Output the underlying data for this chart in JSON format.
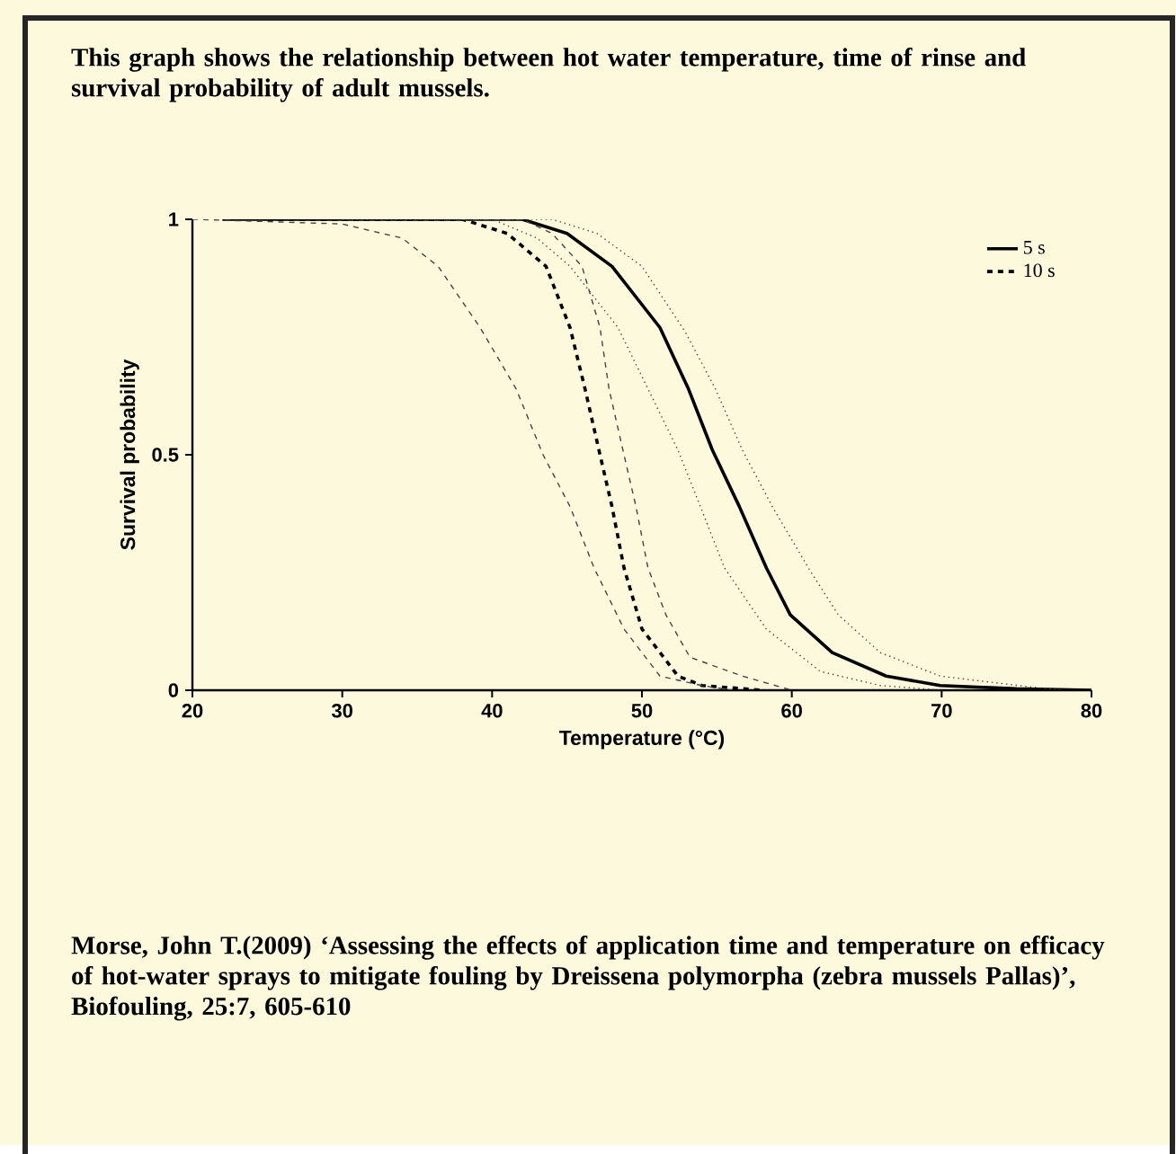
{
  "chart_data": {
    "type": "line",
    "title": "This graph shows the relationship between hot water temperature, time of rinse and survival probability of adult mussels.",
    "xlabel": "Temperature (°C)",
    "ylabel": "Survival probability",
    "xlim": [
      20,
      80
    ],
    "ylim": [
      0,
      1
    ],
    "xticks": [
      20,
      30,
      40,
      50,
      60,
      70,
      80
    ],
    "yticks": [
      0,
      0.5,
      1
    ],
    "legend": "top right",
    "annotations": [
      "Morse, John T.(2009) ‘Assessing the effects of application time and temperature on efficacy of hot-water sprays to mitigate fouling by Dreissena polymorpha (zebra mussels Pallas)’, Biofouling, 25:7, 605-610"
    ],
    "series": [
      {
        "name": "5 s",
        "color": "#000000",
        "line_style": "solid",
        "x": [
          22,
          42,
          45,
          48,
          51.2,
          53.1,
          54.7,
          56.5,
          58.3,
          59.9,
          62.7,
          66.3,
          69.9,
          75,
          80
        ],
        "values": [
          1,
          1,
          0.97,
          0.9,
          0.77,
          0.64,
          0.51,
          0.39,
          0.26,
          0.16,
          0.08,
          0.03,
          0.01,
          0.003,
          0
        ]
      },
      {
        "name": "10 s",
        "color": "#000000",
        "line_style": "dashed",
        "x": [
          25,
          38,
          41,
          43.6,
          45.2,
          46.2,
          47.2,
          48,
          48.8,
          50,
          52.4,
          54,
          58
        ],
        "values": [
          1,
          1,
          0.97,
          0.9,
          0.77,
          0.64,
          0.5,
          0.39,
          0.26,
          0.13,
          0.03,
          0.01,
          0
        ]
      },
      {
        "color": "#444444",
        "line_style": "dotted",
        "x": [
          30,
          44,
          47,
          50,
          52.9,
          54.9,
          56.7,
          58.7,
          61.1,
          63.1,
          65.9,
          69.9,
          75.1,
          78
        ],
        "values": [
          1,
          1,
          0.97,
          0.9,
          0.76,
          0.64,
          0.51,
          0.39,
          0.26,
          0.16,
          0.08,
          0.03,
          0.01,
          0
        ]
      },
      {
        "color": "#444444",
        "line_style": "dotted",
        "x": [
          35,
          40,
          43,
          45.2,
          48.4,
          50.4,
          52.4,
          53.9,
          55.5,
          58.3,
          61.9,
          65.9,
          70
        ],
        "values": [
          1,
          1,
          0.96,
          0.9,
          0.77,
          0.64,
          0.51,
          0.39,
          0.26,
          0.13,
          0.04,
          0.01,
          0
        ]
      },
      {
        "color": "#444444",
        "line_style": "dashed",
        "x": [
          20,
          30,
          34,
          36.4,
          39.2,
          41.6,
          43.4,
          45.2,
          46.8,
          48.8,
          51.2,
          54,
          56
        ],
        "values": [
          1,
          0.99,
          0.96,
          0.9,
          0.77,
          0.64,
          0.5,
          0.39,
          0.26,
          0.13,
          0.03,
          0.01,
          0
        ]
      },
      {
        "color": "#444444",
        "line_style": "dashed",
        "x": [
          38,
          42,
          44,
          46,
          47.2,
          47.8,
          48.8,
          49.6,
          50.4,
          51.6,
          53.2,
          56.7,
          60
        ],
        "values": [
          1,
          1,
          0.97,
          0.9,
          0.77,
          0.64,
          0.5,
          0.39,
          0.26,
          0.16,
          0.07,
          0.03,
          0
        ]
      }
    ]
  }
}
